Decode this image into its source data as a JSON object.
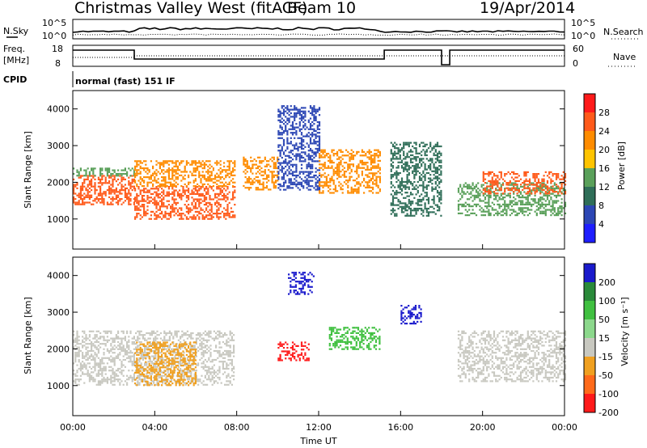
{
  "header": {
    "title": "Christmas Valley West (fitACF)",
    "beam": "Beam 10",
    "date": "19/Apr/2014"
  },
  "noise_panel": {
    "left_label": "N.Sky",
    "right_label": "N.Search",
    "left_ticks": [
      "10^5",
      "10^0"
    ],
    "right_ticks": [
      "10^5",
      "10^0"
    ]
  },
  "freq_panel": {
    "left_label_1": "Freq.",
    "left_label_2": "[MHz]",
    "right_label": "Nave",
    "left_ticks": [
      "18",
      "8"
    ],
    "right_ticks": [
      "60",
      "0"
    ]
  },
  "cpid_panel": {
    "label": "CPID",
    "mode_text": "normal (fast) 151 IF"
  },
  "power_panel": {
    "ylabel": "Slant Range [km]",
    "colorbar_label": "Power [dB]",
    "colorbar_ticks": [
      "28",
      "24",
      "20",
      "16",
      "12",
      "8",
      "4"
    ],
    "colors": [
      "#ff1a1a",
      "#ff5a1a",
      "#ff8c00",
      "#ffc400",
      "#5aa05a",
      "#2f6e58",
      "#2c46b4",
      "#1e1eff"
    ]
  },
  "velocity_panel": {
    "ylabel": "Slant Range [km]",
    "colorbar_label": "Velocity [m s⁻¹]",
    "colorbar_ticks": [
      "200",
      "100",
      "50",
      "15",
      "-15",
      "-50",
      "-100",
      "-200"
    ],
    "colors": [
      "#1a1acc",
      "#2a8a3a",
      "#40c040",
      "#8cd88c",
      "#c8c8c0",
      "#f0a020",
      "#ff6a1a",
      "#ff1a1a"
    ]
  },
  "xaxis": {
    "label": "Time UT",
    "ticks": [
      "00:00",
      "04:00",
      "08:00",
      "12:00",
      "16:00",
      "20:00",
      "00:00"
    ]
  },
  "chart_data": {
    "type": "heatmap",
    "title": "Christmas Valley West (fitACF)",
    "subtitle": "Beam 10  19/Apr/2014",
    "xlabel": "Time UT",
    "ylabel": "Slant Range [km]",
    "xlim": [
      0,
      24
    ],
    "ylim": [
      180,
      4500
    ],
    "x_ticks": [
      0,
      4,
      8,
      12,
      16,
      20,
      24
    ],
    "y_ticks": [
      1000,
      2000,
      3000,
      4000
    ],
    "power_colorbar": {
      "label": "Power [dB]",
      "range": [
        0,
        32
      ],
      "ticks": [
        4,
        8,
        12,
        16,
        20,
        24,
        28
      ]
    },
    "velocity_colorbar": {
      "label": "Velocity [m s-1]",
      "range": [
        -250,
        250
      ],
      "ticks": [
        -200,
        -100,
        -50,
        -15,
        15,
        50,
        100,
        200
      ]
    },
    "mode_gaps_hours": [
      8.0,
      15.3,
      18.1,
      18.6
    ],
    "power_regions": [
      {
        "t0": 0.0,
        "t1": 3.0,
        "r0": 1400,
        "r1": 2200,
        "level": 28
      },
      {
        "t0": 0.0,
        "t1": 3.0,
        "r0": 2200,
        "r1": 2400,
        "level": 14
      },
      {
        "t0": 3.0,
        "t1": 8.0,
        "r0": 1000,
        "r1": 1900,
        "level": 26
      },
      {
        "t0": 3.0,
        "t1": 8.0,
        "r0": 1900,
        "r1": 2600,
        "level": 22
      },
      {
        "t0": 8.3,
        "t1": 10.0,
        "r0": 1800,
        "r1": 2700,
        "level": 24
      },
      {
        "t0": 10.0,
        "t1": 12.0,
        "r0": 1800,
        "r1": 4100,
        "level": 8
      },
      {
        "t0": 12.0,
        "t1": 15.0,
        "r0": 1700,
        "r1": 2900,
        "level": 22
      },
      {
        "t0": 15.5,
        "t1": 18.0,
        "r0": 1100,
        "r1": 3100,
        "level": 10
      },
      {
        "t0": 18.7,
        "t1": 24.0,
        "r0": 1100,
        "r1": 2000,
        "level": 14
      },
      {
        "t0": 20.0,
        "t1": 24.0,
        "r0": 1700,
        "r1": 2300,
        "level": 26
      }
    ],
    "velocity_regions": [
      {
        "t0": 0.0,
        "t1": 8.0,
        "r0": 1000,
        "r1": 2500,
        "level": 0
      },
      {
        "t0": 3.0,
        "t1": 6.0,
        "r0": 1000,
        "r1": 2200,
        "level": -50
      },
      {
        "t0": 10.0,
        "t1": 11.5,
        "r0": 1700,
        "r1": 2200,
        "level": -220
      },
      {
        "t0": 10.5,
        "t1": 11.8,
        "r0": 3500,
        "r1": 4100,
        "level": 220
      },
      {
        "t0": 12.5,
        "t1": 15.0,
        "r0": 2000,
        "r1": 2600,
        "level": 50
      },
      {
        "t0": 16.0,
        "t1": 17.0,
        "r0": 2700,
        "r1": 3200,
        "level": 200
      },
      {
        "t0": 18.7,
        "t1": 24.0,
        "r0": 1100,
        "r1": 2500,
        "level": 0
      }
    ]
  }
}
